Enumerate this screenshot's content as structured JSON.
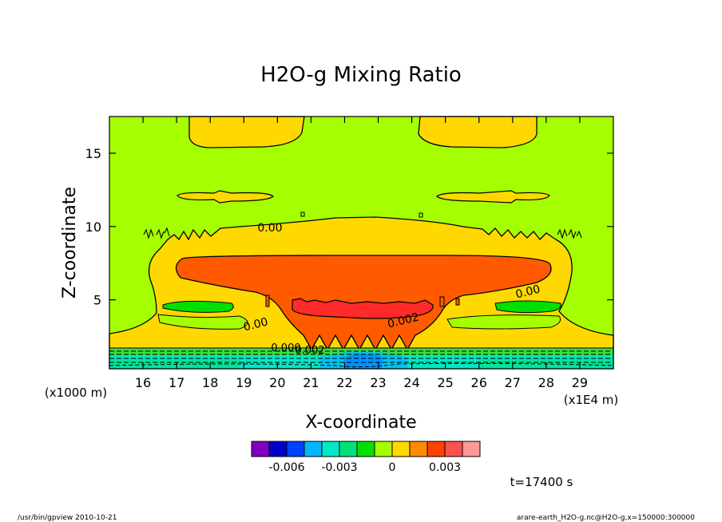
{
  "chart_data": {
    "type": "heatmap",
    "title": "H2O-g Mixing Ratio",
    "xlabel": "X-coordinate",
    "ylabel": "Z-coordinate",
    "xunit": "(x1E4 m)",
    "yunit": "(x1000 m)",
    "xlim": [
      15,
      30
    ],
    "ylim": [
      0.3,
      17.5
    ],
    "x_ticks": [
      16,
      17,
      18,
      19,
      20,
      21,
      22,
      23,
      24,
      25,
      26,
      27,
      28,
      29
    ],
    "y_ticks": [
      5,
      10,
      15
    ],
    "colorbar": {
      "colors": [
        "#7f00bf",
        "#0000cc",
        "#0041ff",
        "#00b6ff",
        "#00e8c6",
        "#00e17a",
        "#00e000",
        "#a5ff00",
        "#ffd800",
        "#ff8c00",
        "#ff4200",
        "#ff5050",
        "#ff9999"
      ],
      "tick_labels": [
        "-0.006",
        "-0.003",
        "0",
        "0.003"
      ],
      "tick_index": [
        2,
        5,
        8,
        11
      ]
    },
    "contour_labels": [
      "0.00",
      "0.00",
      "0.00",
      "0.002",
      "0.000",
      "0.002"
    ],
    "time_label": "t=17400 s"
  },
  "footer": {
    "left": "/usr/bin/gpview  2010-10-21",
    "right": "arare-earth_H2O-g.nc@H2O-g,x=150000:300000"
  },
  "colors": {
    "background_field": "#a5ff00",
    "zero_band": "#ffd800",
    "anvil": "#ff5a00",
    "core": "#ff2020",
    "low_cyan": "#00e8c6",
    "green": "#3cdc3c"
  }
}
